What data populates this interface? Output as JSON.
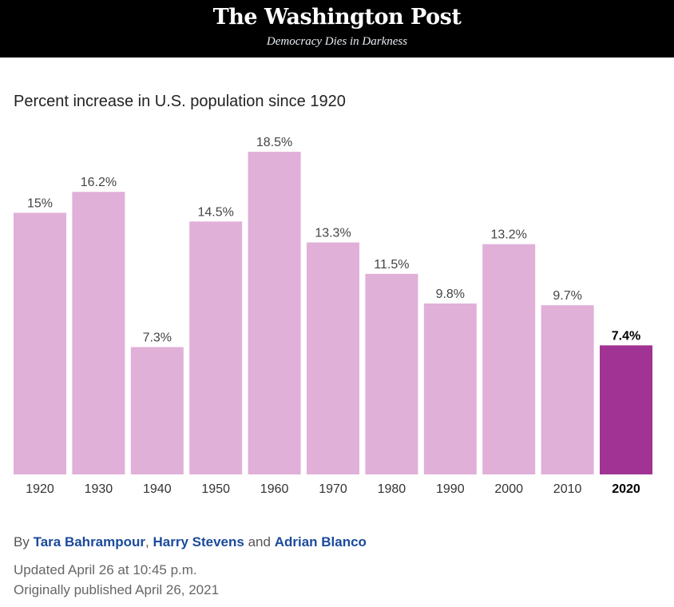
{
  "masthead": {
    "logo": "The Washington Post",
    "tagline": "Democracy Dies in Darkness"
  },
  "chart_data": {
    "type": "bar",
    "title": "Percent increase in U.S. population since 1920",
    "categories": [
      "1920",
      "1930",
      "1940",
      "1950",
      "1960",
      "1970",
      "1980",
      "1990",
      "2000",
      "2010",
      "2020"
    ],
    "values": [
      15,
      16.2,
      7.3,
      14.5,
      18.5,
      13.3,
      11.5,
      9.8,
      13.2,
      9.7,
      7.4
    ],
    "data_labels": [
      "15%",
      "16.2%",
      "7.3%",
      "14.5%",
      "18.5%",
      "13.3%",
      "11.5%",
      "9.8%",
      "13.2%",
      "9.7%",
      "7.4%"
    ],
    "highlight_category": "2020",
    "colors": {
      "default": "#e0b0d8",
      "highlight": "#a03394"
    },
    "ylim": [
      0,
      18.5
    ],
    "grid": false
  },
  "byline": {
    "prefix": "By",
    "authors": [
      "Tara Bahrampour",
      "Harry Stevens",
      "Adrian Blanco"
    ],
    "sep1": ",",
    "sep2": "and"
  },
  "updated": "Updated April 26 at 10:45 p.m.",
  "published": "Originally published April 26, 2021"
}
